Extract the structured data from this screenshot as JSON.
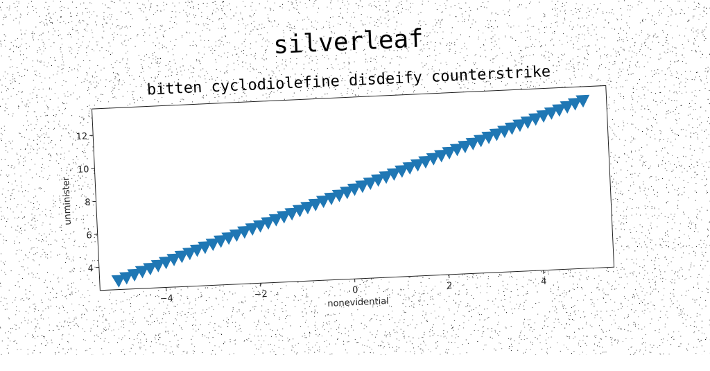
{
  "figure": {
    "suptitle": "silverleaf",
    "title": "bitten cyclodiolefine disdeify counterstrike"
  },
  "chart_data": {
    "type": "scatter",
    "title": "bitten cyclodiolefine disdeify counterstrike",
    "xlabel": "nonevidential",
    "ylabel": "unminister",
    "xlim": [
      -5.4,
      5.5
    ],
    "ylim": [
      2.6,
      13.6
    ],
    "xticks": [
      -4,
      -2,
      0,
      2,
      4
    ],
    "yticks": [
      4,
      6,
      8,
      10,
      12
    ],
    "marker": "triangle_down",
    "color": "#1f77b4",
    "grid": false,
    "series": [
      {
        "x_start": -5.0,
        "x_end": 5.0,
        "count": 60,
        "x": [
          -5.0,
          -4.83,
          -4.66,
          -4.49,
          -4.32,
          -4.15,
          -3.98,
          -3.81,
          -3.64,
          -3.47,
          -3.31,
          -3.14,
          -2.97,
          -2.8,
          -2.63,
          -2.46,
          -2.29,
          -2.12,
          -1.95,
          -1.78,
          -1.61,
          -1.44,
          -1.27,
          -1.1,
          -0.93,
          -0.76,
          -0.59,
          -0.42,
          -0.25,
          -0.08,
          0.08,
          0.25,
          0.42,
          0.59,
          0.76,
          0.93,
          1.1,
          1.27,
          1.44,
          1.61,
          1.78,
          1.95,
          2.12,
          2.29,
          2.46,
          2.63,
          2.8,
          2.97,
          3.14,
          3.31,
          3.47,
          3.64,
          3.81,
          3.98,
          4.15,
          4.32,
          4.49,
          4.66,
          4.83,
          5.0
        ],
        "y": [
          3.1,
          3.26,
          3.42,
          3.59,
          3.75,
          3.91,
          4.08,
          4.24,
          4.4,
          4.56,
          4.73,
          4.89,
          5.05,
          5.22,
          5.38,
          5.54,
          5.71,
          5.87,
          6.03,
          6.19,
          6.36,
          6.52,
          6.68,
          6.85,
          7.01,
          7.17,
          7.34,
          7.5,
          7.66,
          7.82,
          7.99,
          8.15,
          8.31,
          8.48,
          8.64,
          8.8,
          8.96,
          9.13,
          9.29,
          9.45,
          9.62,
          9.78,
          9.94,
          10.11,
          10.27,
          10.43,
          10.59,
          10.76,
          10.92,
          11.08,
          11.25,
          11.41,
          11.57,
          11.74,
          11.9,
          12.06,
          12.22,
          12.39,
          12.55,
          12.71
        ]
      }
    ]
  }
}
